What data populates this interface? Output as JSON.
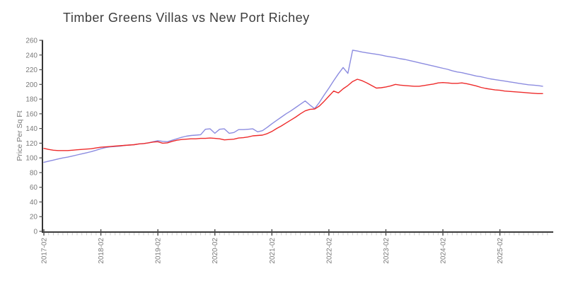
{
  "title": "Timber Greens Villas vs New Port Richey",
  "chart_data": {
    "type": "line",
    "title": "Timber Greens Villas vs New Port Richey",
    "xlabel": "",
    "ylabel": "Price Per Sq Ft",
    "ylim": [
      0,
      260
    ],
    "ytick_step": 20,
    "grid": false,
    "legend": "none",
    "x_start": "2017-02",
    "x_end": "2025-11",
    "x_points_monthly": 106,
    "x_major_tick_labels": [
      "2017-02",
      "2018-02",
      "2019-02",
      "2020-02",
      "2021-02",
      "2022-02",
      "2023-02",
      "2024-02",
      "2025-02"
    ],
    "x_major_tick_indices": [
      0,
      12,
      24,
      36,
      48,
      60,
      72,
      84,
      96
    ],
    "x_minor_every_months": 1,
    "series": [
      {
        "name": "Timber Greens Villas",
        "color": "#8c8ce0",
        "values": [
          94,
          95.5,
          97,
          98.5,
          100,
          101,
          102.5,
          104,
          105.5,
          107,
          108.5,
          110.5,
          112.5,
          114,
          115,
          115.5,
          116,
          117,
          117.5,
          118,
          119,
          119.5,
          120.5,
          122,
          123.5,
          122.5,
          122,
          124,
          126,
          128,
          129.5,
          130.5,
          131,
          131.5,
          139,
          139.5,
          133.5,
          139,
          139.5,
          133.5,
          134.5,
          138.5,
          138.5,
          139,
          139.5,
          135.5,
          137,
          141.5,
          146.5,
          151,
          155.5,
          160,
          164,
          168.5,
          173,
          177.5,
          172,
          167,
          175.5,
          185.5,
          195,
          205,
          214.5,
          223,
          215,
          246.5,
          245.5,
          244,
          243,
          242,
          241,
          240,
          238.5,
          237.5,
          236.5,
          235,
          234,
          232.5,
          231,
          229.5,
          228,
          226.5,
          225,
          223.5,
          222,
          220.5,
          218.5,
          217,
          216,
          214.5,
          213,
          211.5,
          210.5,
          209,
          207.5,
          206.5,
          205.5,
          204.5,
          203.5,
          202.5,
          201.5,
          200.5,
          199.5,
          199,
          198.5,
          197.5
        ]
      },
      {
        "name": "New Port Richey",
        "color": "#ee2b2b",
        "values": [
          113,
          111.5,
          110.5,
          110,
          110,
          110,
          110.5,
          111,
          111.5,
          112,
          112.5,
          113.5,
          114.5,
          115,
          115.5,
          116,
          116.5,
          117,
          117.5,
          118,
          119,
          119.5,
          120.5,
          121.5,
          122,
          120,
          120.5,
          122.5,
          124,
          125,
          125.5,
          126,
          126,
          126.5,
          126.5,
          127,
          126.5,
          126,
          124.5,
          125,
          125.5,
          127,
          127.5,
          128.5,
          130,
          130.5,
          131,
          133,
          136,
          140,
          143.5,
          147.5,
          151.5,
          155.5,
          160,
          164,
          166,
          166.5,
          170.5,
          177,
          184,
          191,
          188.5,
          194,
          198.5,
          204,
          207,
          205,
          202,
          198.5,
          195,
          195.5,
          196.5,
          198,
          200,
          199,
          198.5,
          198,
          197.5,
          197.5,
          198.5,
          199.5,
          200.5,
          202,
          202.5,
          202,
          201.5,
          201.5,
          202,
          201,
          199.5,
          198,
          196,
          194.5,
          193.5,
          192.5,
          192,
          191,
          190.5,
          190,
          189.5,
          189,
          188.5,
          188,
          187.5,
          187.5
        ]
      }
    ]
  },
  "style_colors": {
    "axis_line": "#1f1f1f",
    "major_tick": "#4a4a4a",
    "minor_tick": "#c8c8c8",
    "tick_label": "#7a7a7a",
    "axis_title": "#7a7a7a",
    "chart_title": "#3c3c3c"
  }
}
